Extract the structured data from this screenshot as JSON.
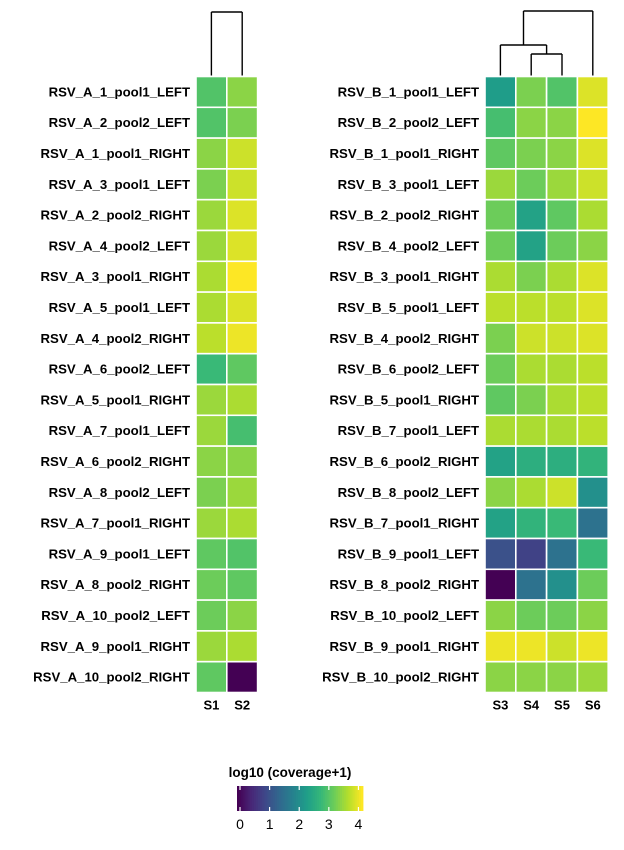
{
  "chart_data": [
    {
      "type": "heatmap",
      "rows": [
        "RSV_A_1_pool1_LEFT",
        "RSV_A_2_pool2_LEFT",
        "RSV_A_1_pool1_RIGHT",
        "RSV_A_3_pool1_LEFT",
        "RSV_A_2_pool2_RIGHT",
        "RSV_A_4_pool2_LEFT",
        "RSV_A_3_pool1_RIGHT",
        "RSV_A_5_pool1_LEFT",
        "RSV_A_4_pool2_RIGHT",
        "RSV_A_6_pool2_LEFT",
        "RSV_A_5_pool1_RIGHT",
        "RSV_A_7_pool1_LEFT",
        "RSV_A_6_pool2_RIGHT",
        "RSV_A_8_pool2_LEFT",
        "RSV_A_7_pool1_RIGHT",
        "RSV_A_9_pool1_LEFT",
        "RSV_A_8_pool2_RIGHT",
        "RSV_A_10_pool2_LEFT",
        "RSV_A_9_pool1_RIGHT",
        "RSV_A_10_pool2_RIGHT"
      ],
      "columns": [
        "S1",
        "S2"
      ],
      "values": [
        [
          2.9,
          3.3
        ],
        [
          2.9,
          3.2
        ],
        [
          3.3,
          3.7
        ],
        [
          3.2,
          3.7
        ],
        [
          3.4,
          3.8
        ],
        [
          3.4,
          3.8
        ],
        [
          3.5,
          4.0
        ],
        [
          3.5,
          3.8
        ],
        [
          3.6,
          3.9
        ],
        [
          2.7,
          3.0
        ],
        [
          3.4,
          3.5
        ],
        [
          3.4,
          2.8
        ],
        [
          3.3,
          3.3
        ],
        [
          3.2,
          3.4
        ],
        [
          3.4,
          3.5
        ],
        [
          3.0,
          2.9
        ],
        [
          3.1,
          3.0
        ],
        [
          3.1,
          3.3
        ],
        [
          3.4,
          3.5
        ],
        [
          3.0,
          0.0
        ]
      ],
      "column_dendrogram": true
    },
    {
      "type": "heatmap",
      "rows": [
        "RSV_B_1_pool1_LEFT",
        "RSV_B_2_pool2_LEFT",
        "RSV_B_1_pool1_RIGHT",
        "RSV_B_3_pool1_LEFT",
        "RSV_B_2_pool2_RIGHT",
        "RSV_B_4_pool2_LEFT",
        "RSV_B_3_pool1_RIGHT",
        "RSV_B_5_pool1_LEFT",
        "RSV_B_4_pool2_RIGHT",
        "RSV_B_6_pool2_LEFT",
        "RSV_B_5_pool1_RIGHT",
        "RSV_B_7_pool1_LEFT",
        "RSV_B_6_pool2_RIGHT",
        "RSV_B_8_pool2_LEFT",
        "RSV_B_7_pool1_RIGHT",
        "RSV_B_9_pool1_LEFT",
        "RSV_B_8_pool2_RIGHT",
        "RSV_B_10_pool2_LEFT",
        "RSV_B_9_pool1_RIGHT",
        "RSV_B_10_pool2_RIGHT"
      ],
      "columns": [
        "S3",
        "S4",
        "S5",
        "S6"
      ],
      "values": [
        [
          2.2,
          3.2,
          2.9,
          3.8
        ],
        [
          2.8,
          3.3,
          3.3,
          4.0
        ],
        [
          3.0,
          3.2,
          3.3,
          3.8
        ],
        [
          3.4,
          3.1,
          3.4,
          3.7
        ],
        [
          3.1,
          2.3,
          3.0,
          3.5
        ],
        [
          3.1,
          2.3,
          3.1,
          3.3
        ],
        [
          3.5,
          3.2,
          3.5,
          3.8
        ],
        [
          3.6,
          3.6,
          3.6,
          3.8
        ],
        [
          3.2,
          3.7,
          3.7,
          3.8
        ],
        [
          3.1,
          3.5,
          3.5,
          3.6
        ],
        [
          3.0,
          3.2,
          3.5,
          3.6
        ],
        [
          3.5,
          3.5,
          3.5,
          3.6
        ],
        [
          2.3,
          2.5,
          2.5,
          2.6
        ],
        [
          3.3,
          3.5,
          3.7,
          2.0
        ],
        [
          2.3,
          2.6,
          2.7,
          1.5
        ],
        [
          1.0,
          0.8,
          1.5,
          2.7
        ],
        [
          0.0,
          1.5,
          2.0,
          3.1
        ],
        [
          3.3,
          3.1,
          3.1,
          3.3
        ],
        [
          3.9,
          3.9,
          3.7,
          3.9
        ],
        [
          3.3,
          3.3,
          3.3,
          3.4
        ]
      ],
      "column_dendrogram": true
    }
  ],
  "legend": {
    "title": "log10 (coverage+1)",
    "ticks": [
      "0",
      "1",
      "2",
      "3",
      "4"
    ],
    "min": 0,
    "max": 4,
    "colormap": "viridis"
  }
}
